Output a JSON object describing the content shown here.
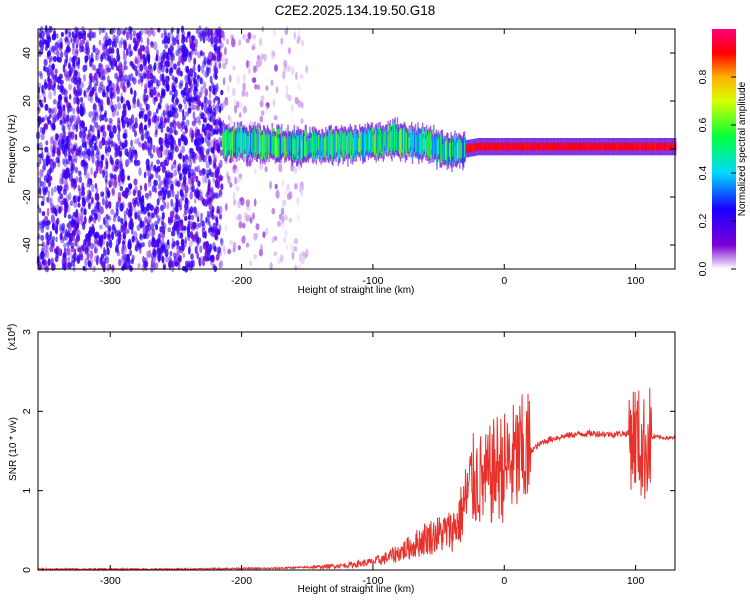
{
  "figure": {
    "title": "C2E2.2025.134.19.50.G18"
  },
  "chart_data": [
    {
      "type": "heatmap",
      "xlabel": "Height of straight line (km)",
      "ylabel": "Frequency (Hz)",
      "xlim": [
        -355,
        130
      ],
      "ylim": [
        -50,
        50
      ],
      "x_ticks": [
        -300,
        -200,
        -100,
        0,
        100
      ],
      "y_ticks": [
        -40,
        -20,
        0,
        20,
        40
      ],
      "colorbar": {
        "label": "Normalized spectral amplitude",
        "range": [
          0,
          1
        ],
        "ticks": [
          0.0,
          0.2,
          0.4,
          0.6,
          0.8
        ],
        "tick_labels": [
          "0.0",
          "0.2",
          "0.4",
          "0.6",
          "0.8"
        ],
        "colors": [
          "#ffffff",
          "#7a00d6",
          "#1a00ff",
          "#00d9ff",
          "#00ff3a",
          "#d8ff00",
          "#ffb000",
          "#ff0000",
          "#ff007a"
        ]
      },
      "regions": [
        {
          "name": "noise",
          "x": [
            -355,
            -215
          ],
          "y": [
            -50,
            50
          ],
          "level": 0.2
        },
        {
          "name": "sparse noise",
          "x": [
            -215,
            -170
          ],
          "y": [
            -50,
            50
          ],
          "level": 0.05
        },
        {
          "name": "sparse noise",
          "x": [
            -170,
            -150
          ],
          "y": [
            -50,
            50
          ],
          "level": 0.03
        },
        {
          "name": "carrier",
          "x": [
            -215,
            -30
          ],
          "y": [
            -5,
            8
          ],
          "level": 0.45
        },
        {
          "name": "carrier",
          "x": [
            -30,
            130
          ],
          "y": [
            0,
            3
          ],
          "level": 0.85
        }
      ],
      "carrier_center_hz": [
        {
          "x": -215,
          "f": 3
        },
        {
          "x": -180,
          "f": 2
        },
        {
          "x": -150,
          "f": 1
        },
        {
          "x": -120,
          "f": 2
        },
        {
          "x": -100,
          "f": 3
        },
        {
          "x": -80,
          "f": 4
        },
        {
          "x": -60,
          "f": 2
        },
        {
          "x": -40,
          "f": -1
        },
        {
          "x": -20,
          "f": 1
        },
        {
          "x": 0,
          "f": 1
        },
        {
          "x": 50,
          "f": 1
        },
        {
          "x": 100,
          "f": 1
        },
        {
          "x": 130,
          "f": 1
        }
      ]
    },
    {
      "type": "line",
      "xlabel": "Height of straight line (km)",
      "ylabel": "SNR (10 * v/v)",
      "y_scale_label": "(x10",
      "y_scale_exponent": "4",
      "xlim": [
        -355,
        130
      ],
      "ylim": [
        0,
        3
      ],
      "x_ticks": [
        -300,
        -200,
        -100,
        0,
        100
      ],
      "y_ticks": [
        0,
        1,
        2,
        3
      ],
      "series": [
        {
          "color": "#e8312b",
          "points": [
            [
              -355,
              0.01
            ],
            [
              -300,
              0.01
            ],
            [
              -250,
              0.01
            ],
            [
              -200,
              0.02
            ],
            [
              -180,
              0.02
            ],
            [
              -160,
              0.03
            ],
            [
              -140,
              0.04
            ],
            [
              -120,
              0.06
            ],
            [
              -100,
              0.1
            ],
            [
              -90,
              0.15
            ],
            [
              -80,
              0.22
            ],
            [
              -70,
              0.3
            ],
            [
              -60,
              0.4
            ],
            [
              -50,
              0.45
            ],
            [
              -40,
              0.5
            ],
            [
              -35,
              0.6
            ],
            [
              -30,
              0.85
            ],
            [
              -25,
              1.1
            ],
            [
              -20,
              1.15
            ],
            [
              -15,
              1.1
            ],
            [
              -10,
              1.2
            ],
            [
              -5,
              1.3
            ],
            [
              0,
              1.3
            ],
            [
              10,
              1.4
            ],
            [
              20,
              1.5
            ],
            [
              30,
              1.62
            ],
            [
              40,
              1.67
            ],
            [
              50,
              1.7
            ],
            [
              60,
              1.72
            ],
            [
              70,
              1.72
            ],
            [
              80,
              1.71
            ],
            [
              90,
              1.72
            ],
            [
              95,
              1.72
            ],
            [
              100,
              1.68
            ],
            [
              103,
              1.6
            ],
            [
              106,
              1.5
            ],
            [
              110,
              1.65
            ],
            [
              115,
              1.68
            ],
            [
              120,
              1.67
            ],
            [
              130,
              1.66
            ]
          ]
        }
      ]
    }
  ]
}
